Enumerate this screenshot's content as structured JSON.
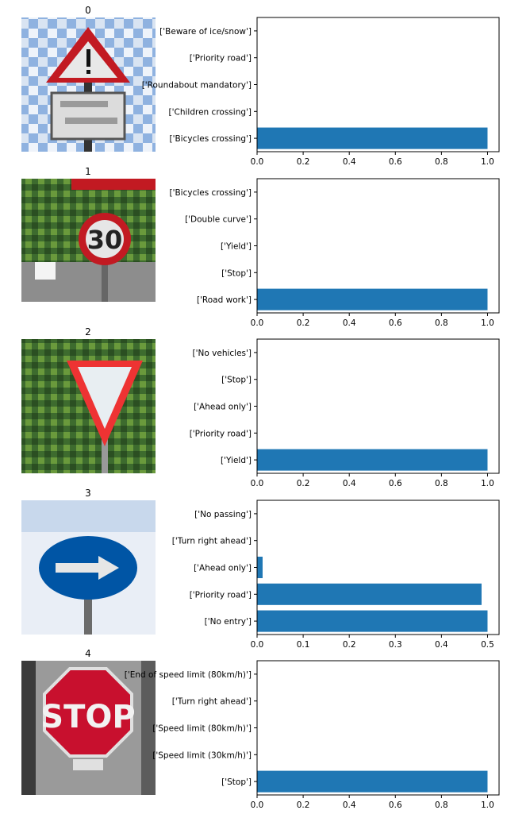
{
  "bar_color": "#1f77b4",
  "sign_icons": [
    "warning-triangle-sign-icon",
    "speed-limit-30-sign-icon",
    "yield-sign-icon",
    "keep-right-sign-icon",
    "stop-sign-icon"
  ],
  "sign_texts": [
    "",
    "30",
    "",
    "",
    "STOP"
  ],
  "chart_data": [
    {
      "type": "bar",
      "orientation": "horizontal",
      "title": "0",
      "categories": [
        "['Bicycles crossing']",
        "['Children crossing']",
        "['Roundabout mandatory']",
        "['Priority road']",
        "['Beware of ice/snow']"
      ],
      "values": [
        1.0,
        0.0,
        0.0,
        0.0,
        0.0
      ],
      "xlim": [
        0,
        1.05
      ],
      "xticks": [
        "0.0",
        "0.2",
        "0.4",
        "0.6",
        "0.8",
        "1.0"
      ],
      "xtick_values": [
        0,
        0.2,
        0.4,
        0.6,
        0.8,
        1.0
      ]
    },
    {
      "type": "bar",
      "orientation": "horizontal",
      "title": "1",
      "categories": [
        "['Road work']",
        "['Stop']",
        "['Yield']",
        "['Double curve']",
        "['Bicycles crossing']"
      ],
      "values": [
        1.0,
        0.0,
        0.0,
        0.0,
        0.0
      ],
      "xlim": [
        0,
        1.05
      ],
      "xticks": [
        "0.0",
        "0.2",
        "0.4",
        "0.6",
        "0.8",
        "1.0"
      ],
      "xtick_values": [
        0,
        0.2,
        0.4,
        0.6,
        0.8,
        1.0
      ]
    },
    {
      "type": "bar",
      "orientation": "horizontal",
      "title": "2",
      "categories": [
        "['Yield']",
        "['Priority road']",
        "['Ahead only']",
        "['Stop']",
        "['No vehicles']"
      ],
      "values": [
        1.0,
        0.0,
        0.0,
        0.0,
        0.0
      ],
      "xlim": [
        0,
        1.05
      ],
      "xticks": [
        "0.0",
        "0.2",
        "0.4",
        "0.6",
        "0.8",
        "1.0"
      ],
      "xtick_values": [
        0,
        0.2,
        0.4,
        0.6,
        0.8,
        1.0
      ]
    },
    {
      "type": "bar",
      "orientation": "horizontal",
      "title": "3",
      "categories": [
        "['No entry']",
        "['Priority road']",
        "['Ahead only']",
        "['Turn right ahead']",
        "['No passing']"
      ],
      "values": [
        0.5,
        0.487,
        0.012,
        0.0,
        0.0
      ],
      "xlim": [
        0,
        0.525
      ],
      "xticks": [
        "0.0",
        "0.1",
        "0.2",
        "0.3",
        "0.4",
        "0.5"
      ],
      "xtick_values": [
        0,
        0.1,
        0.2,
        0.3,
        0.4,
        0.5
      ]
    },
    {
      "type": "bar",
      "orientation": "horizontal",
      "title": "4",
      "categories": [
        "['Stop']",
        "['Speed limit (30km/h)']",
        "['Speed limit (80km/h)']",
        "['Turn right ahead']",
        "['End of speed limit (80km/h)']"
      ],
      "values": [
        1.0,
        0.0,
        0.0,
        0.0,
        0.0
      ],
      "xlim": [
        0,
        1.05
      ],
      "xticks": [
        "0.0",
        "0.2",
        "0.4",
        "0.6",
        "0.8",
        "1.0"
      ],
      "xtick_values": [
        0,
        0.2,
        0.4,
        0.6,
        0.8,
        1.0
      ]
    }
  ]
}
